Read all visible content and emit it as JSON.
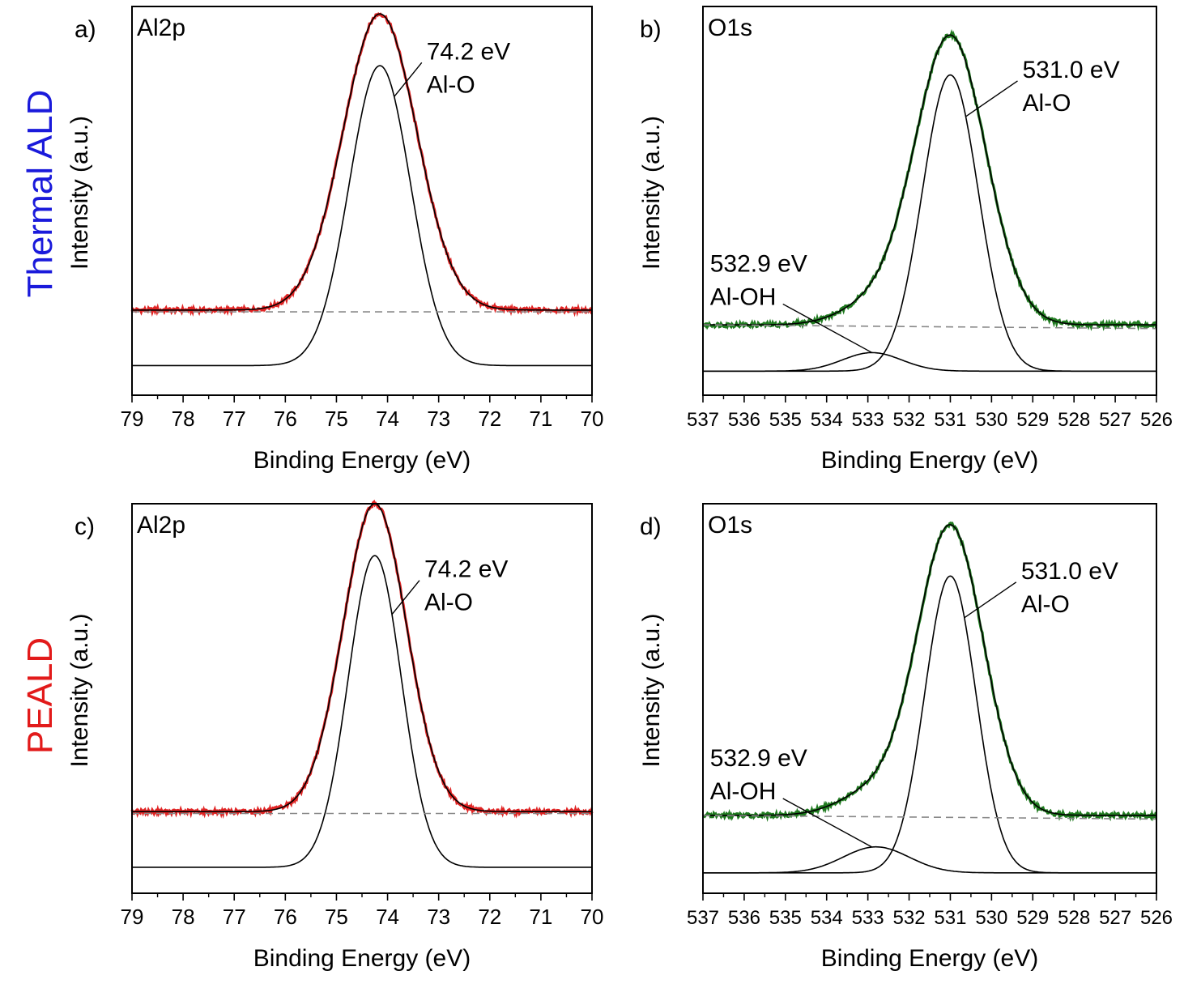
{
  "row_labels": [
    {
      "text": "Thermal ALD",
      "color": "#1a1adb"
    },
    {
      "text": "PEALD",
      "color": "#e21a1a"
    }
  ],
  "colors": {
    "al_data": "#e02424",
    "o_data": "#1f7a1f",
    "fit": "#000000",
    "background_line": "#888888"
  },
  "chart_data": [
    {
      "type": "line",
      "panel": "a)",
      "title": "Al2p",
      "xlabel": "Binding Energy (eV)",
      "ylabel": "Intensity (a.u.)",
      "xlim": [
        79,
        70
      ],
      "ylim": [
        -0.05,
        1.0
      ],
      "x_ticks": [
        79,
        78,
        77,
        76,
        75,
        74,
        73,
        72,
        71,
        70
      ],
      "grid": false,
      "series": [
        {
          "role": "data",
          "color": "#e02424",
          "background": 0.18,
          "peaks": [
            {
              "center": 74.15,
              "amplitude": 0.8,
              "sigma": 0.72
            }
          ]
        },
        {
          "role": "envelope",
          "color": "#000000",
          "background": 0.18,
          "peaks": [
            {
              "center": 74.15,
              "amplitude": 0.8,
              "sigma": 0.72
            }
          ]
        },
        {
          "role": "component",
          "color": "#000000",
          "background": 0.03,
          "peaks": [
            {
              "center": 74.15,
              "amplitude": 0.81,
              "sigma": 0.6
            }
          ]
        },
        {
          "role": "baseline",
          "color": "#888888",
          "dashed": true,
          "values": [
            0.175,
            0.175
          ]
        }
      ],
      "annotations": [
        {
          "label_lines": [
            "74.2 eV",
            "Al-O"
          ],
          "position": 74.2
        }
      ]
    },
    {
      "type": "line",
      "panel": "b)",
      "title": "O1s",
      "xlabel": "Binding Energy (eV)",
      "ylabel": "Intensity (a.u.)",
      "xlim": [
        537,
        526
      ],
      "ylim": [
        -0.05,
        1.0
      ],
      "x_ticks": [
        537,
        536,
        535,
        534,
        533,
        532,
        531,
        530,
        529,
        528,
        527,
        526
      ],
      "grid": false,
      "series": [
        {
          "role": "data",
          "color": "#1f7a1f",
          "background": 0.14,
          "peaks": [
            {
              "center": 531.0,
              "amplitude": 0.78,
              "sigma": 0.86
            },
            {
              "center": 532.9,
              "amplitude": 0.05,
              "sigma": 0.8
            }
          ]
        },
        {
          "role": "envelope",
          "color": "#000000",
          "background": 0.14,
          "peaks": [
            {
              "center": 531.0,
              "amplitude": 0.78,
              "sigma": 0.86
            },
            {
              "center": 532.9,
              "amplitude": 0.05,
              "sigma": 0.8
            }
          ]
        },
        {
          "role": "component",
          "color": "#000000",
          "background": 0.015,
          "peaks": [
            {
              "center": 531.0,
              "amplitude": 0.8,
              "sigma": 0.68
            }
          ]
        },
        {
          "role": "component",
          "color": "#000000",
          "background": 0.015,
          "peaks": [
            {
              "center": 532.9,
              "amplitude": 0.05,
              "sigma": 0.72
            }
          ]
        },
        {
          "role": "baseline",
          "color": "#888888",
          "dashed": true,
          "values": [
            0.14,
            0.13
          ]
        }
      ],
      "annotations": [
        {
          "label_lines": [
            "531.0 eV",
            "Al-O"
          ],
          "position": 531.0
        },
        {
          "label_lines": [
            "532.9 eV",
            "Al-OH"
          ],
          "position": 532.9
        }
      ]
    },
    {
      "type": "line",
      "panel": "c)",
      "title": "Al2p",
      "xlabel": "Binding Energy (eV)",
      "ylabel": "Intensity (a.u.)",
      "xlim": [
        79,
        70
      ],
      "ylim": [
        -0.05,
        1.0
      ],
      "x_ticks": [
        79,
        78,
        77,
        76,
        75,
        74,
        73,
        72,
        71,
        70
      ],
      "grid": false,
      "series": [
        {
          "role": "data",
          "color": "#e02424",
          "background": 0.17,
          "peaks": [
            {
              "center": 74.25,
              "amplitude": 0.83,
              "sigma": 0.62
            }
          ]
        },
        {
          "role": "envelope",
          "color": "#000000",
          "background": 0.17,
          "peaks": [
            {
              "center": 74.25,
              "amplitude": 0.83,
              "sigma": 0.62
            }
          ]
        },
        {
          "role": "component",
          "color": "#000000",
          "background": 0.02,
          "peaks": [
            {
              "center": 74.25,
              "amplitude": 0.84,
              "sigma": 0.52
            }
          ]
        },
        {
          "role": "baseline",
          "color": "#888888",
          "dashed": true,
          "values": [
            0.165,
            0.165
          ]
        }
      ],
      "annotations": [
        {
          "label_lines": [
            "74.2 eV",
            "Al-O"
          ],
          "position": 74.2
        }
      ]
    },
    {
      "type": "line",
      "panel": "d)",
      "title": "O1s",
      "xlabel": "Binding Energy (eV)",
      "ylabel": "Intensity (a.u.)",
      "xlim": [
        537,
        526
      ],
      "ylim": [
        -0.05,
        1.0
      ],
      "x_ticks": [
        537,
        536,
        535,
        534,
        533,
        532,
        531,
        530,
        529,
        528,
        527,
        526
      ],
      "grid": false,
      "series": [
        {
          "role": "data",
          "color": "#1f7a1f",
          "background": 0.16,
          "peaks": [
            {
              "center": 531.0,
              "amplitude": 0.78,
              "sigma": 0.8
            },
            {
              "center": 532.9,
              "amplitude": 0.06,
              "sigma": 0.8
            }
          ]
        },
        {
          "role": "envelope",
          "color": "#000000",
          "background": 0.16,
          "peaks": [
            {
              "center": 531.0,
              "amplitude": 0.78,
              "sigma": 0.8
            },
            {
              "center": 532.9,
              "amplitude": 0.06,
              "sigma": 0.8
            }
          ]
        },
        {
          "role": "component",
          "color": "#000000",
          "background": 0.005,
          "peaks": [
            {
              "center": 531.0,
              "amplitude": 0.8,
              "sigma": 0.62
            }
          ]
        },
        {
          "role": "component",
          "color": "#000000",
          "background": 0.005,
          "peaks": [
            {
              "center": 532.8,
              "amplitude": 0.07,
              "sigma": 0.8
            }
          ]
        },
        {
          "role": "baseline",
          "color": "#888888",
          "dashed": true,
          "values": [
            0.16,
            0.15
          ]
        }
      ],
      "annotations": [
        {
          "label_lines": [
            "531.0 eV",
            "Al-O"
          ],
          "position": 531.0
        },
        {
          "label_lines": [
            "532.9 eV",
            "Al-OH"
          ],
          "position": 532.9
        }
      ]
    }
  ]
}
